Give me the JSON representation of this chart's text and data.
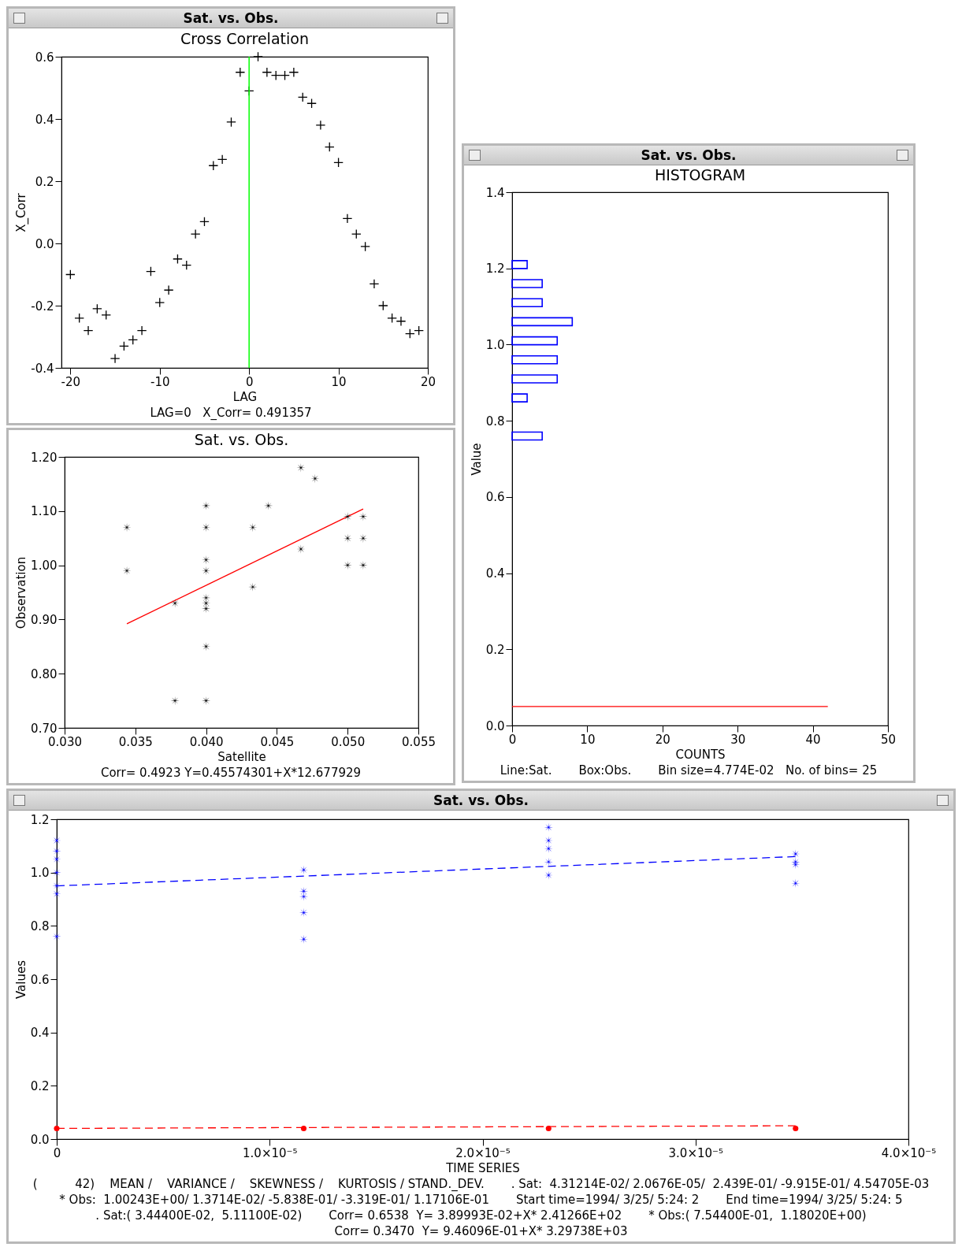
{
  "chart_data": [
    {
      "type": "scatter",
      "title": "Sat. vs. Obs.",
      "subtitle": "Cross Correlation",
      "xlabel": "LAG",
      "ylabel": "X_Corr",
      "series": [
        {
          "marker": "cross",
          "color": "#000000",
          "x": [
            -20,
            -19,
            -18,
            -17,
            -16,
            -15,
            -14,
            -13,
            -12,
            -11,
            -10,
            -9,
            -8,
            -7,
            -6,
            -5,
            -4,
            -3,
            -2,
            -1,
            0,
            1,
            2,
            3,
            4,
            5,
            6,
            7,
            8,
            9,
            10,
            11,
            12,
            13,
            14,
            15,
            16,
            17,
            18,
            19
          ],
          "values": [
            -0.1,
            -0.24,
            -0.28,
            -0.21,
            -0.23,
            -0.37,
            -0.33,
            -0.31,
            -0.28,
            -0.09,
            -0.19,
            -0.15,
            -0.05,
            -0.07,
            0.03,
            0.07,
            0.25,
            0.27,
            0.39,
            0.55,
            0.49,
            0.6,
            0.55,
            0.54,
            0.54,
            0.55,
            0.47,
            0.45,
            0.38,
            0.31,
            0.26,
            0.08,
            0.03,
            -0.01,
            -0.13,
            -0.2,
            -0.24,
            -0.25,
            -0.29,
            -0.28
          ]
        }
      ],
      "ref_lines": [
        {
          "axis": "x",
          "value": 0,
          "color": "#00ff00"
        }
      ],
      "xlim": [
        -21,
        20
      ],
      "xticks": [
        -20,
        -10,
        0,
        10,
        20
      ],
      "ylim": [
        -0.4,
        0.6
      ],
      "yticks": [
        -0.4,
        -0.2,
        {
          "value": 0,
          "label": "0.0"
        },
        0.2,
        0.4,
        0.6
      ],
      "annotations": [
        "LAG=0   X_Corr= 0.491357"
      ]
    },
    {
      "type": "scatter",
      "subtitle": "Sat. vs. Obs.",
      "xlabel": "Satellite",
      "ylabel": "Observation",
      "series": [
        {
          "marker": "star",
          "color": "#000000",
          "x": [
            0.0344,
            0.0344,
            0.0378,
            0.0378,
            0.04,
            0.04,
            0.04,
            0.04,
            0.04,
            0.04,
            0.04,
            0.04,
            0.04,
            0.0433,
            0.0433,
            0.0444,
            0.0467,
            0.0477,
            0.0467,
            0.05,
            0.05,
            0.05,
            0.0511,
            0.0511,
            0.0511
          ],
          "values": [
            1.07,
            0.99,
            0.93,
            0.75,
            1.11,
            1.07,
            1.01,
            0.99,
            0.94,
            0.93,
            0.92,
            0.85,
            0.75,
            1.07,
            0.96,
            1.11,
            1.18,
            1.16,
            1.03,
            1.09,
            1.05,
            1.0,
            1.09,
            1.05,
            1.0
          ]
        },
        {
          "type": "line",
          "color": "#ff0000",
          "x": [
            0.0344,
            0.0511
          ],
          "values": [
            0.892,
            1.104
          ]
        }
      ],
      "xlim": [
        0.03,
        0.055
      ],
      "xticks": [
        {
          "value": 0.03,
          "label": "0.030"
        },
        {
          "value": 0.035,
          "label": "0.035"
        },
        {
          "value": 0.04,
          "label": "0.040"
        },
        {
          "value": 0.045,
          "label": "0.045"
        },
        {
          "value": 0.05,
          "label": "0.050"
        },
        {
          "value": 0.055,
          "label": "0.055"
        }
      ],
      "ylim": [
        0.7,
        1.2
      ],
      "yticks": [
        {
          "value": 0.7,
          "label": "0.70"
        },
        {
          "value": 0.8,
          "label": "0.80"
        },
        {
          "value": 0.9,
          "label": "0.90"
        },
        {
          "value": 1.0,
          "label": "1.00"
        },
        {
          "value": 1.1,
          "label": "1.10"
        },
        {
          "value": 1.2,
          "label": "1.20"
        }
      ],
      "annotations": [
        "Corr= 0.4923 Y=0.45574301+X*12.677929"
      ]
    },
    {
      "type": "bar",
      "orientation": "horizontal",
      "title": "Sat. vs. Obs.",
      "subtitle": "HISTOGRAM",
      "xlabel": "COUNTS",
      "ylabel": "Value",
      "series": [
        {
          "color": "#0000ff",
          "x": [
            1.21,
            1.16,
            1.11,
            1.06,
            1.01,
            0.96,
            0.91,
            0.86,
            0.76
          ],
          "values": [
            2,
            4,
            4,
            8,
            6,
            6,
            6,
            2,
            4
          ]
        },
        {
          "type": "line",
          "color": "#ff0000",
          "x": [
            0.05,
            0.05
          ],
          "values": [
            0,
            42
          ]
        }
      ],
      "xlim": [
        0,
        50
      ],
      "xticks": [
        0,
        10,
        20,
        30,
        40,
        50
      ],
      "ylim": [
        0,
        1.4
      ],
      "yticks": [
        {
          "value": 0,
          "label": "0.0"
        },
        0.2,
        0.4,
        0.6,
        0.8,
        {
          "value": 1,
          "label": "1.0"
        },
        1.2,
        1.4
      ],
      "annotations": [
        "Line:Sat.",
        "Box:Obs.",
        "Bin size=4.774E-02   No. of bins= 25"
      ]
    },
    {
      "type": "scatter",
      "title": "Sat. vs. Obs.",
      "xlabel": "TIME SERIES",
      "ylabel": "Values",
      "series": [
        {
          "marker": "star",
          "color": "#0000ff",
          "x": [
            0,
            0,
            0,
            0,
            0,
            0,
            0,
            1.16e-05,
            1.16e-05,
            1.16e-05,
            1.16e-05,
            1.16e-05,
            2.31e-05,
            2.31e-05,
            2.31e-05,
            2.31e-05,
            2.31e-05,
            3.47e-05,
            3.47e-05,
            3.47e-05,
            3.47e-05
          ],
          "values": [
            1.12,
            1.08,
            1.05,
            1.0,
            0.95,
            0.92,
            0.76,
            1.01,
            0.93,
            0.91,
            0.85,
            0.75,
            1.17,
            1.12,
            1.09,
            1.04,
            0.99,
            1.07,
            1.04,
            1.03,
            0.96
          ]
        },
        {
          "type": "line",
          "line_style": "dashed",
          "color": "#0000ff",
          "x": [
            0,
            3.47e-05
          ],
          "values": [
            0.95,
            1.06
          ]
        },
        {
          "marker": "circle",
          "color": "#ff0000",
          "x": [
            0,
            1.16e-05,
            2.31e-05,
            3.47e-05
          ],
          "values": [
            0.04,
            0.04,
            0.04,
            0.04
          ]
        },
        {
          "type": "line",
          "line_style": "dashed",
          "color": "#ff0000",
          "x": [
            0,
            3.47e-05
          ],
          "values": [
            0.04,
            0.05
          ]
        }
      ],
      "xlim": [
        0,
        4e-05
      ],
      "xticks": [
        0,
        {
          "value": 1e-05,
          "label": "1.0×10⁻⁵"
        },
        {
          "value": 2e-05,
          "label": "2.0×10⁻⁵"
        },
        {
          "value": 3e-05,
          "label": "3.0×10⁻⁵"
        },
        {
          "value": 4e-05,
          "label": "4.0×10⁻⁵"
        }
      ],
      "ylim": [
        0,
        1.2
      ],
      "yticks": [
        {
          "value": 0,
          "label": "0.0"
        },
        0.2,
        0.4,
        0.6,
        0.8,
        {
          "value": 1,
          "label": "1.0"
        },
        1.2
      ],
      "annotations": [
        "(          42)    MEAN /    VARIANCE /    SKEWNESS /    KURTOSIS / STAND._DEV.",
        ". Sat:  4.31214E-02/ 2.0676E-05/  2.439E-01/ -9.915E-01/ 4.54705E-03",
        "* Obs:  1.00243E+00/ 1.3714E-02/ -5.838E-01/ -3.319E-01/ 1.17106E-01",
        "Start time=1994/ 3/25/ 5:24: 2",
        "End time=1994/ 3/25/ 5:24: 5",
        ". Sat:( 3.44400E-02,  5.11100E-02)",
        "Corr= 0.6538  Y= 3.89993E-02+X* 2.41266E+02",
        "* Obs:( 7.54400E-01,  1.18020E+00)",
        "Corr= 0.3470  Y= 9.46096E-01+X* 3.29738E+03"
      ]
    }
  ]
}
